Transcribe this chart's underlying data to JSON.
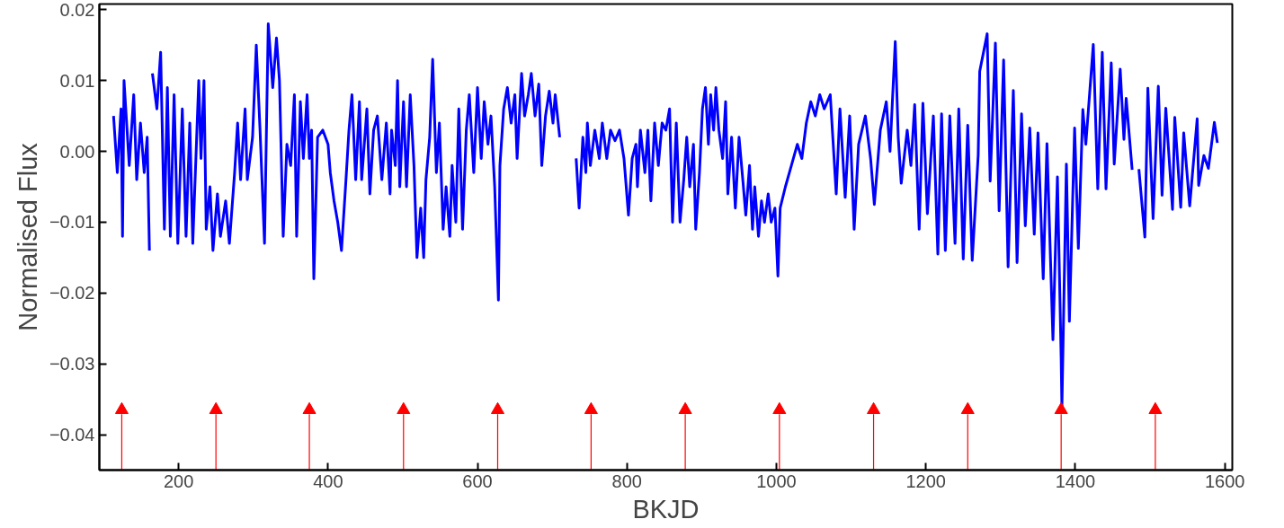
{
  "chart_data": {
    "type": "line",
    "xlabel": "BKJD",
    "ylabel": "Normalised Flux",
    "xlim": [
      94,
      1610
    ],
    "ylim": [
      -0.045,
      0.0208
    ],
    "xticks": [
      200,
      400,
      600,
      800,
      1000,
      1200,
      1400,
      1600
    ],
    "yticks": [
      {
        "value": -0.04,
        "label": "−0.04"
      },
      {
        "value": -0.03,
        "label": "−0.03"
      },
      {
        "value": -0.02,
        "label": "−0.02"
      },
      {
        "value": -0.01,
        "label": "−0.01"
      },
      {
        "value": 0,
        "label": "0.00"
      },
      {
        "value": 0.01,
        "label": "0.01"
      },
      {
        "value": 0.02,
        "label": "0.02"
      }
    ],
    "grid": false,
    "marker": "none",
    "line_style": "solid",
    "series": [
      {
        "color": "#0000ff",
        "x": [
          113,
          118,
          123,
          125,
          127,
          134,
          140,
          144,
          149,
          154,
          158,
          161,
          163,
          165,
          171,
          176,
          181,
          185,
          189,
          194,
          199,
          205,
          210,
          215,
          219,
          227,
          230,
          234,
          237,
          242,
          246,
          252,
          256,
          263,
          268,
          275,
          279,
          283,
          289,
          292,
          299,
          304,
          309,
          315,
          320,
          326,
          331,
          335,
          340,
          345,
          350,
          355,
          358,
          363,
          367,
          372,
          375,
          378,
          381,
          386,
          393,
          400,
          403,
          408,
          413,
          418,
          424,
          428,
          432,
          437,
          442,
          445,
          452,
          456,
          461,
          466,
          472,
          478,
          483,
          485,
          490,
          493,
          496,
          501,
          505,
          510,
          515,
          519,
          524,
          528,
          531,
          536,
          540,
          545,
          549,
          554,
          558,
          563,
          566,
          571,
          575,
          580,
          585,
          589,
          595,
          600,
          605,
          609,
          614,
          618,
          623,
          628,
          630,
          635,
          640,
          645,
          650,
          653,
          659,
          663,
          668,
          672,
          677,
          682,
          686,
          691,
          696,
          701,
          704,
          710,
          720,
          732,
          736,
          741,
          745,
          747,
          751,
          757,
          763,
          767,
          773,
          778,
          784,
          790,
          796,
          802,
          807,
          812,
          814,
          818,
          824,
          828,
          832,
          837,
          842,
          847,
          852,
          857,
          861,
          866,
          871,
          876,
          880,
          884,
          889,
          892,
          897,
          901,
          905,
          909,
          912,
          916,
          919,
          923,
          928,
          932,
          935,
          940,
          945,
          950,
          955,
          959,
          964,
          968,
          971,
          976,
          980,
          984,
          989,
          993,
          998,
          1002,
          1005,
          1012,
          1020,
          1028,
          1034,
          1040,
          1046,
          1052,
          1058,
          1064,
          1072,
          1080,
          1085,
          1092,
          1098,
          1104,
          1110,
          1119,
          1126,
          1131,
          1139,
          1147,
          1152,
          1159,
          1163,
          1167,
          1175,
          1180,
          1185,
          1191,
          1196,
          1202,
          1210,
          1216,
          1221,
          1226,
          1232,
          1239,
          1244,
          1250,
          1256,
          1262,
          1270,
          1272,
          1282,
          1286,
          1293,
          1298,
          1304,
          1310,
          1317,
          1322,
          1328,
          1333,
          1339,
          1345,
          1350,
          1357,
          1362,
          1370,
          1376,
          1381,
          1382,
          1388,
          1392,
          1399,
          1404,
          1410,
          1414,
          1424,
          1430,
          1436,
          1441,
          1448,
          1452,
          1460,
          1465,
          1468,
          1476,
          1480,
          1485,
          1493,
          1497,
          1504,
          1511,
          1516,
          1521,
          1530,
          1533,
          1541,
          1545,
          1553,
          1563,
          1565,
          1572,
          1578,
          1586,
          1590
        ],
        "values": [
          0.005,
          -0.003,
          0.006,
          -0.012,
          0.01,
          -0.002,
          0.008,
          -0.004,
          0.004,
          -0.003,
          0.002,
          -0.014,
          null,
          0.011,
          0.006,
          0.014,
          -0.011,
          0.009,
          -0.012,
          0.008,
          -0.013,
          0.006,
          -0.012,
          0.004,
          -0.013,
          0.01,
          -0.001,
          0.01,
          -0.011,
          -0.005,
          -0.014,
          -0.006,
          -0.012,
          -0.007,
          -0.013,
          -0.003,
          0.004,
          -0.004,
          0.006,
          -0.004,
          0.002,
          0.015,
          0.003,
          -0.013,
          0.018,
          0.009,
          0.016,
          0.01,
          -0.012,
          0.001,
          -0.002,
          0.008,
          -0.012,
          0.007,
          -0.001,
          0.008,
          -0.001,
          0.003,
          -0.018,
          0.002,
          0.003,
          0.001,
          -0.003,
          -0.007,
          -0.01,
          -0.014,
          -0.004,
          0.003,
          0.008,
          -0.004,
          0.007,
          -0.004,
          0.006,
          -0.006,
          0.003,
          0.005,
          -0.004,
          0.004,
          -0.006,
          0.003,
          -0.002,
          0.01,
          -0.005,
          0.007,
          -0.005,
          0.008,
          -0.002,
          -0.015,
          -0.008,
          -0.015,
          -0.004,
          0.002,
          0.013,
          -0.003,
          0.004,
          -0.011,
          -0.005,
          -0.012,
          -0.002,
          -0.01,
          0.006,
          -0.011,
          0.003,
          0.008,
          -0.003,
          0.009,
          -0.001,
          0.007,
          0.001,
          0.005,
          -0.005,
          -0.021,
          -0.002,
          0.006,
          0.009,
          0.004,
          0.008,
          -0.001,
          0.011,
          0.005,
          0.008,
          0.011,
          0.005,
          0.0095,
          -0.002,
          0.005,
          0.0085,
          0.004,
          0.008,
          0.002,
          null,
          -0.001,
          -0.008,
          0.002,
          -0.003,
          0.004,
          -0.002,
          0.003,
          -0.001,
          0.004,
          -0.001,
          0.003,
          0.0015,
          0.003,
          -0.001,
          -0.009,
          -0.001,
          0.001,
          -0.005,
          0.003,
          -0.003,
          0.003,
          -0.007,
          0.004,
          -0.002,
          0.004,
          0.003,
          0.006,
          -0.01,
          0.004,
          -0.01,
          -0.004,
          0.002,
          -0.005,
          0.001,
          -0.011,
          -0.003,
          0.006,
          0.009,
          0.001,
          0.008,
          0.003,
          0.009,
          0.003,
          -0.001,
          0.007,
          -0.006,
          0.002,
          -0.008,
          0.002,
          -0.004,
          -0.009,
          -0.002,
          -0.011,
          -0.005,
          -0.012,
          -0.007,
          -0.01,
          -0.006,
          -0.01,
          -0.008,
          -0.0176,
          -0.008,
          -0.005,
          -0.002,
          0.001,
          -0.001,
          0.004,
          0.007,
          0.005,
          0.008,
          0.006,
          0.008,
          -0.006,
          0.006,
          -0.0065,
          0.005,
          -0.011,
          0.001,
          0.005,
          -0.001,
          -0.0075,
          0.003,
          0.007,
          0,
          0.0155,
          0.002,
          -0.0045,
          0.003,
          -0.002,
          0.0066,
          -0.011,
          0.0068,
          -0.0088,
          0.005,
          -0.0145,
          0.0053,
          -0.014,
          0.005,
          -0.013,
          0.006,
          -0.0152,
          0.0037,
          -0.0154,
          -0.0005,
          0.0113,
          0.0166,
          -0.0042,
          0.0153,
          -0.0084,
          0.0129,
          -0.0163,
          0.0086,
          -0.0157,
          0.0053,
          -0.0105,
          0.0033,
          -0.0117,
          0.0026,
          -0.018,
          0.0011,
          -0.0266,
          -0.0036,
          -0.0292,
          -0.0362,
          -0.0018,
          -0.024,
          0.0033,
          -0.0137,
          0.0059,
          0.001,
          0.0151,
          -0.0053,
          0.014,
          -0.0053,
          0.0125,
          -0.0018,
          0.0116,
          0.0017,
          0.0075,
          -0.0026,
          null,
          -0.0025,
          -0.0121,
          0.0089,
          -0.0095,
          0.0092,
          -0.0062,
          0.0061,
          -0.0082,
          0.0048,
          -0.0079,
          0.0026,
          -0.0077,
          0.0046,
          -0.0048,
          -0.0006,
          -0.0024,
          0.0041,
          0.0012
        ]
      },
      {
        "type": "scatter",
        "marker": "triangle",
        "color": "#ff0000",
        "x": [
          124,
          250,
          375,
          501,
          627,
          752,
          878,
          1004,
          1130,
          1256,
          1381,
          1507
        ],
        "values": [
          -0.0365,
          -0.0365,
          -0.0365,
          -0.0365,
          -0.0365,
          -0.0365,
          -0.0365,
          -0.0365,
          -0.0365,
          -0.0365,
          -0.0365,
          -0.0365
        ]
      }
    ],
    "ref_lines": [
      {
        "axis": "x",
        "value": 124,
        "color": "#ff0000"
      },
      {
        "axis": "x",
        "value": 250,
        "color": "#ff0000"
      },
      {
        "axis": "x",
        "value": 375,
        "color": "#ff0000"
      },
      {
        "axis": "x",
        "value": 501,
        "color": "#ff0000"
      },
      {
        "axis": "x",
        "value": 627,
        "color": "#ff0000"
      },
      {
        "axis": "x",
        "value": 752,
        "color": "#ff0000"
      },
      {
        "axis": "x",
        "value": 878,
        "color": "#ff0000"
      },
      {
        "axis": "x",
        "value": 1004,
        "color": "#ff0000"
      },
      {
        "axis": "x",
        "value": 1130,
        "color": "#ff0000"
      },
      {
        "axis": "x",
        "value": 1256,
        "color": "#ff0000"
      },
      {
        "axis": "x",
        "value": 1381,
        "color": "#ff0000"
      },
      {
        "axis": "x",
        "value": 1507,
        "color": "#ff0000"
      }
    ]
  }
}
